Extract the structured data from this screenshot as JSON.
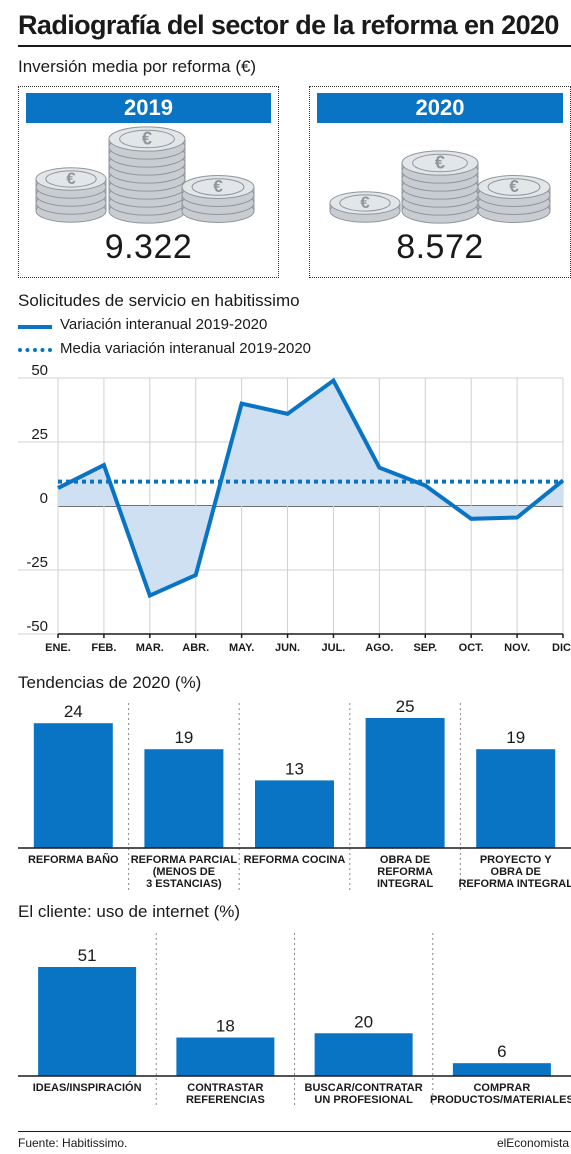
{
  "title": "Radiografía del sector de la reforma en 2020",
  "investment": {
    "title": "Inversión media por reforma (€)",
    "coin_symbol": "€",
    "items": [
      {
        "year": "2019",
        "value": "9.322",
        "amount": 9322
      },
      {
        "year": "2020",
        "value": "8.572",
        "amount": 8572
      }
    ]
  },
  "requests": {
    "title": "Solicitudes de servicio en habitissimo",
    "legend": {
      "line": "Variación interanual 2019-2020",
      "dotted": "Media variación interanual 2019-2020"
    }
  },
  "tendencias": {
    "title": "Tendencias de 2020 (%)"
  },
  "cliente": {
    "title": "El cliente: uso de internet (%)"
  },
  "footer": {
    "source": "Fuente: Habitissimo.",
    "brand": "elEconomista"
  },
  "chart_data": [
    {
      "type": "area",
      "categories": [
        "ENE.",
        "FEB.",
        "MAR.",
        "ABR.",
        "MAY.",
        "JUN.",
        "JUL.",
        "AGO.",
        "SEP.",
        "OCT.",
        "NOV.",
        "DIC."
      ],
      "series": [
        {
          "name": "Variación interanual 2019-2020",
          "values": [
            7,
            16,
            -35,
            -27,
            40,
            36,
            49,
            15,
            8,
            -5,
            -4.5,
            10
          ]
        }
      ],
      "average": 9.5,
      "yticks": [
        50,
        25,
        0,
        -25,
        -50
      ],
      "ylim": [
        -50,
        50
      ],
      "grid": true,
      "colors": {
        "line": "#0a74c4",
        "fill": "#cfe0f3",
        "grid": "#d0d0d0"
      }
    },
    {
      "type": "bar",
      "title": "Tendencias de 2020 (%)",
      "categories": [
        [
          "REFORMA BAÑO"
        ],
        [
          "REFORMA PARCIAL",
          "(MENOS DE",
          "3 ESTANCIAS)"
        ],
        [
          "REFORMA COCINA"
        ],
        [
          "OBRA DE",
          "REFORMA",
          "INTEGRAL"
        ],
        [
          "PROYECTO Y",
          "OBRA DE",
          "REFORMA INTEGRAL"
        ]
      ],
      "values": [
        24,
        19,
        13,
        25,
        19
      ],
      "ylim": [
        0,
        25
      ],
      "color": "#0a74c4"
    },
    {
      "type": "bar",
      "title": "El cliente: uso de internet (%)",
      "categories": [
        [
          "IDEAS/INSPIRACIÓN"
        ],
        [
          "CONTRASTAR",
          "REFERENCIAS"
        ],
        [
          "BUSCAR/CONTRATAR",
          "UN PROFESIONAL"
        ],
        [
          "COMPRAR",
          "PRODUCTOS/MATERIALES"
        ]
      ],
      "values": [
        51,
        18,
        20,
        6
      ],
      "ylim": [
        0,
        51
      ],
      "color": "#0a74c4"
    }
  ]
}
